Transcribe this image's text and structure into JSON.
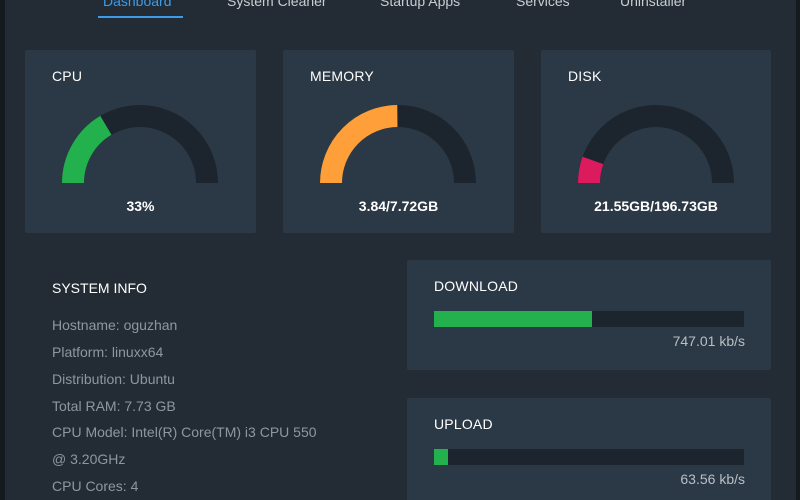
{
  "tabs": [
    {
      "label": "Dashboard",
      "active": true
    },
    {
      "label": "System Cleaner",
      "active": false
    },
    {
      "label": "Startup Apps",
      "active": false
    },
    {
      "label": "Services",
      "active": false
    },
    {
      "label": "Uninstaller",
      "active": false
    }
  ],
  "gauges": {
    "cpu": {
      "title": "CPU",
      "value_text": "33%",
      "fraction": 0.33,
      "color": "#22b14c"
    },
    "memory": {
      "title": "MEMORY",
      "value_text": "3.84/7.72GB",
      "fraction": 0.497,
      "color": "#ff9f3a"
    },
    "disk": {
      "title": "DISK",
      "value_text": "21.55GB/196.73GB",
      "fraction": 0.1095,
      "color": "#dc1a5e"
    }
  },
  "gauge_track_color": "#1c252d",
  "system_info": {
    "title": "SYSTEM INFO",
    "lines": [
      "Hostname: oguzhan",
      "Platform: linuxx64",
      "Distribution: Ubuntu",
      "Total RAM: 7.73 GB",
      "CPU Model: Intel(R) Core(TM) i3 CPU 550",
      "@ 3.20GHz",
      "CPU Cores: 4"
    ]
  },
  "download": {
    "title": "DOWNLOAD",
    "value_text": "747.01 kb/s",
    "fraction": 0.51,
    "color": "#22b14c"
  },
  "upload": {
    "title": "UPLOAD",
    "value_text": "63.56 kb/s",
    "fraction": 0.045,
    "color": "#22b14c"
  }
}
